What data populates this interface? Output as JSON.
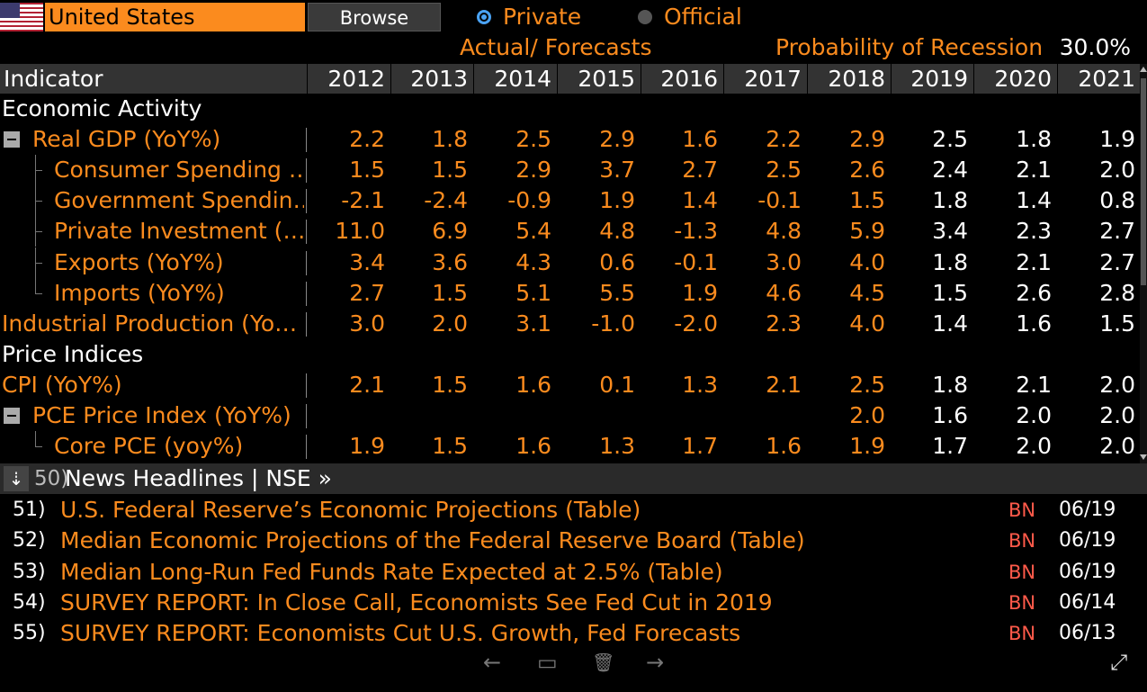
{
  "top_bar": {
    "country": "United States",
    "browse_label": "Browse",
    "radio_private": "Private",
    "radio_official": "Official",
    "actual_forecasts": "Actual/ Forecasts",
    "recession_label": "Probability of Recession",
    "recession_value": "30.0%"
  },
  "table": {
    "indicator_header": "Indicator",
    "years": [
      "2012",
      "2013",
      "2014",
      "2015",
      "2016",
      "2017",
      "2018",
      "2019",
      "2020",
      "2021"
    ],
    "rows": [
      {
        "label": "Economic Activity",
        "kind": "section",
        "values": []
      },
      {
        "label": "Real GDP (YoY%)",
        "kind": "parent",
        "values": [
          "2.2",
          "1.8",
          "2.5",
          "2.9",
          "1.6",
          "2.2",
          "2.9",
          "2.5",
          "1.8",
          "1.9"
        ]
      },
      {
        "label": "Consumer Spending …",
        "kind": "child",
        "values": [
          "1.5",
          "1.5",
          "2.9",
          "3.7",
          "2.7",
          "2.5",
          "2.6",
          "2.4",
          "2.1",
          "2.0"
        ]
      },
      {
        "label": "Government Spendin…",
        "kind": "child",
        "values": [
          "-2.1",
          "-2.4",
          "-0.9",
          "1.9",
          "1.4",
          "-0.1",
          "1.5",
          "1.8",
          "1.4",
          "0.8"
        ]
      },
      {
        "label": "Private Investment (…",
        "kind": "child",
        "values": [
          "11.0",
          "6.9",
          "5.4",
          "4.8",
          "-1.3",
          "4.8",
          "5.9",
          "3.4",
          "2.3",
          "2.7"
        ]
      },
      {
        "label": "Exports (YoY%)",
        "kind": "child",
        "values": [
          "3.4",
          "3.6",
          "4.3",
          "0.6",
          "-0.1",
          "3.0",
          "4.0",
          "1.8",
          "2.1",
          "2.7"
        ]
      },
      {
        "label": "Imports (YoY%)",
        "kind": "child-last",
        "values": [
          "2.7",
          "1.5",
          "5.1",
          "5.5",
          "1.9",
          "4.6",
          "4.5",
          "1.5",
          "2.6",
          "2.8"
        ]
      },
      {
        "label": "Industrial Production (Yo…",
        "kind": "plain",
        "values": [
          "3.0",
          "2.0",
          "3.1",
          "-1.0",
          "-2.0",
          "2.3",
          "4.0",
          "1.4",
          "1.6",
          "1.5"
        ]
      },
      {
        "label": "Price Indices",
        "kind": "section",
        "values": []
      },
      {
        "label": "CPI (YoY%)",
        "kind": "plain",
        "values": [
          "2.1",
          "1.5",
          "1.6",
          "0.1",
          "1.3",
          "2.1",
          "2.5",
          "1.8",
          "2.1",
          "2.0"
        ]
      },
      {
        "label": "PCE Price Index (YoY%)",
        "kind": "parent",
        "values": [
          "",
          "",
          "",
          "",
          "",
          "",
          "2.0",
          "1.6",
          "2.0",
          "2.0"
        ]
      },
      {
        "label": "Core PCE (yoy%)",
        "kind": "child-last",
        "values": [
          "1.9",
          "1.5",
          "1.6",
          "1.3",
          "1.7",
          "1.6",
          "1.9",
          "1.7",
          "2.0",
          "2.0"
        ]
      }
    ]
  },
  "news": {
    "collapse_icon": "chevron-double-down-icon",
    "number": "50)",
    "title": "News Headlines | NSE »",
    "items": [
      {
        "num": "51)",
        "headline": "U.S. Federal Reserve’s Economic Projections (Table)",
        "source": "BN",
        "date": "06/19"
      },
      {
        "num": "52)",
        "headline": "Median Economic Projections of the Federal Reserve Board (Table)",
        "source": "BN",
        "date": "06/19"
      },
      {
        "num": "53)",
        "headline": "Median Long-Run Fed Funds Rate Expected at 2.5% (Table)",
        "source": "BN",
        "date": "06/19"
      },
      {
        "num": "54)",
        "headline": "SURVEY REPORT: In Close Call, Economists See Fed Cut in 2019",
        "source": "BN",
        "date": "06/14"
      },
      {
        "num": "55)",
        "headline": "SURVEY REPORT: Economists Cut U.S. Growth, Fed Forecasts",
        "source": "BN",
        "date": "06/13"
      }
    ]
  },
  "controls": {
    "back": "←",
    "comment": "▭",
    "trash": "🗑",
    "forward": "→",
    "expand": "⤢"
  },
  "colors": {
    "accent_orange": "#fb8b1e",
    "background": "#000000",
    "header_bg": "#333333",
    "source_red": "#ff5a4a",
    "radio_blue": "#4aa3f5"
  }
}
